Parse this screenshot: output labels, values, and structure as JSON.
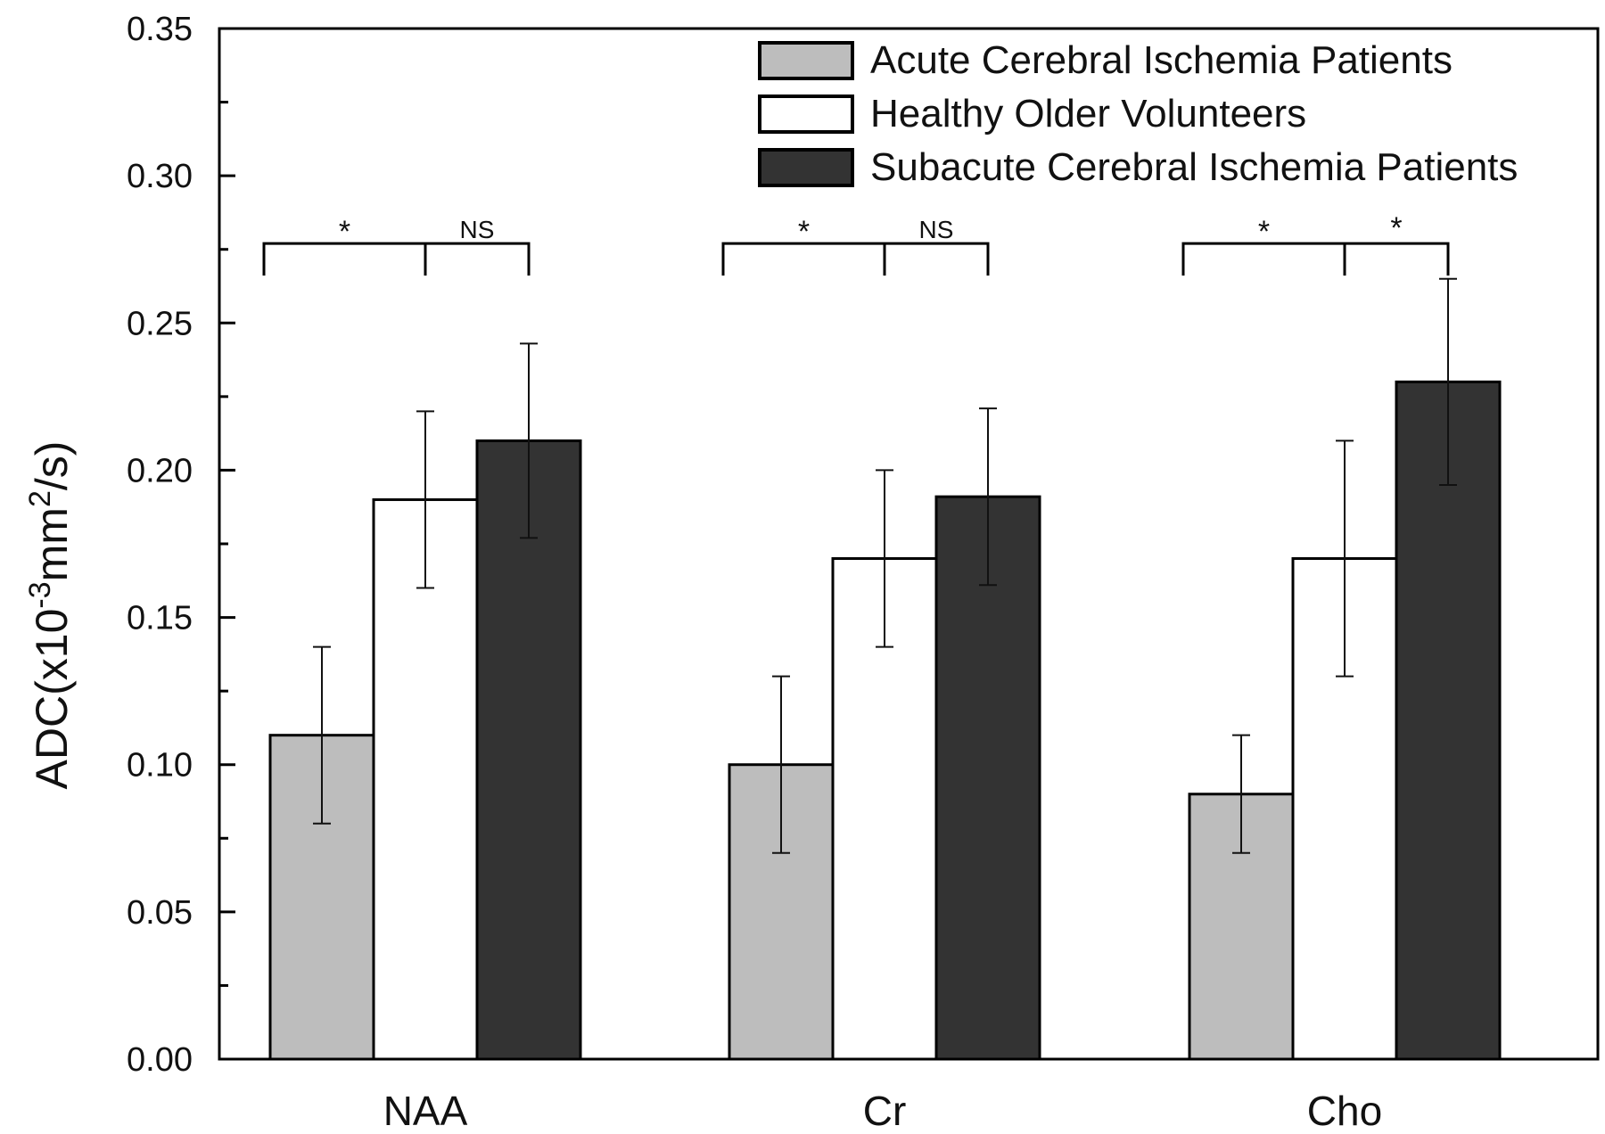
{
  "chart_data": {
    "type": "bar",
    "categories": [
      "NAA",
      "Cr",
      "Cho"
    ],
    "ylabel": {
      "prefix": "ADC",
      "paren_open": "(",
      "base": "x10",
      "exp1": "-3",
      "unit": "mm",
      "exp2": "2",
      "suffix": "/s)"
    },
    "ylim": [
      0,
      0.35
    ],
    "yticks": [
      "0.00",
      "0.05",
      "0.10",
      "0.15",
      "0.20",
      "0.25",
      "0.30",
      "0.35"
    ],
    "ytick_values": [
      0,
      0.05,
      0.1,
      0.15,
      0.2,
      0.25,
      0.3,
      0.35
    ],
    "grid": false,
    "legend_position": "top-right",
    "series": [
      {
        "name": "Acute Cerebral Ischemia Patients",
        "color": "#bdbdbd",
        "values": [
          0.11,
          0.1,
          0.09
        ],
        "errors": [
          0.03,
          0.03,
          0.02
        ]
      },
      {
        "name": "Healthy Older Volunteers",
        "color": "#ffffff",
        "values": [
          0.19,
          0.17,
          0.17
        ],
        "errors": [
          0.03,
          0.03,
          0.04
        ]
      },
      {
        "name": "Subacute Cerebral Ischemia Patients",
        "color": "#333333",
        "values": [
          0.21,
          0.191,
          0.23
        ],
        "errors": [
          0.033,
          0.03,
          0.035
        ]
      }
    ],
    "significance": [
      {
        "category": "NAA",
        "left": "*",
        "right": "NS",
        "level": 0.277
      },
      {
        "category": "Cr",
        "left": "*",
        "right": "NS",
        "level": 0.277
      },
      {
        "category": "Cho",
        "left": "*",
        "right": "*",
        "level": 0.277
      }
    ]
  }
}
